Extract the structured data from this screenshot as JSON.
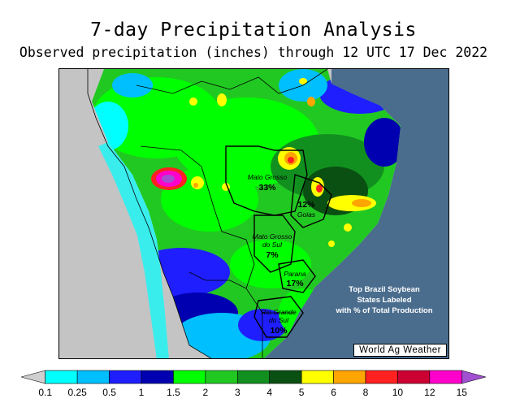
{
  "title": "7-day Precipitation Analysis",
  "subtitle": "Observed precipitation (inches) through 12 UTC 17 Dec 2022",
  "credit": "World Ag Weather",
  "note": [
    "Top Brazil Soybean",
    "States Labeled",
    "with % of Total Production"
  ],
  "states": [
    {
      "name": [
        "Mato Grosso"
      ],
      "pct": "33%"
    },
    {
      "name": [
        "Goias"
      ],
      "pct": "12%"
    },
    {
      "name": [
        "Mato Grosso",
        "do Sul"
      ],
      "pct": "7%"
    },
    {
      "name": [
        "Parana"
      ],
      "pct": "17%"
    },
    {
      "name": [
        "Rio Grande",
        "do Sul"
      ],
      "pct": "10%"
    }
  ],
  "legend": {
    "labels": [
      "0.1",
      "0.25",
      "0.5",
      "1",
      "1.5",
      "2",
      "3",
      "4",
      "5",
      "6",
      "8",
      "10",
      "12",
      "15"
    ],
    "colors": [
      "#cfcfcf",
      "#00ffff",
      "#00bfff",
      "#1e1eff",
      "#0000b0",
      "#00ff00",
      "#22c822",
      "#11901f",
      "#0a5012",
      "#ffff00",
      "#ffa500",
      "#ff2020",
      "#cc0033",
      "#ff00cc",
      "#a050d0"
    ]
  },
  "colors": {
    "ocean": "#4a6d8e",
    "land_dry": "#c4c4c4"
  }
}
